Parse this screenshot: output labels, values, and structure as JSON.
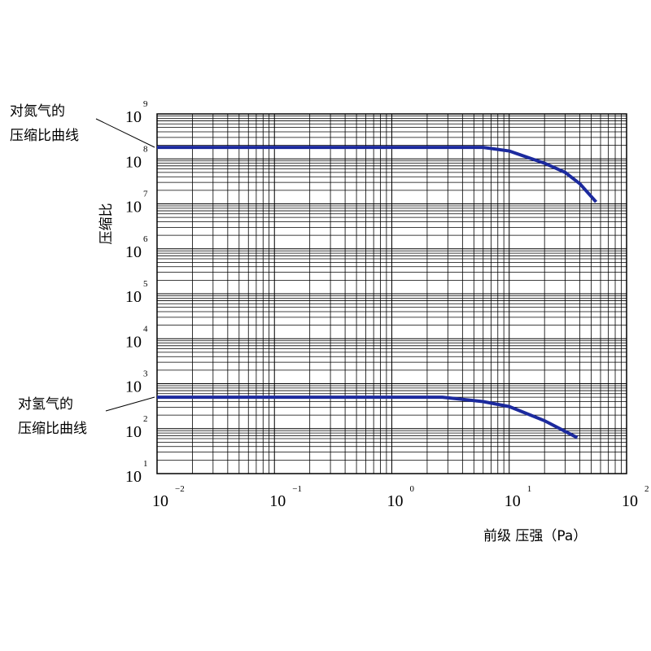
{
  "chart_data": {
    "type": "line",
    "xlabel": "前级 压强（Pa）",
    "ylabel": "压缩比",
    "xscale": "log",
    "yscale": "log",
    "grid": true,
    "minor_grid": true,
    "xlim": [
      0.01,
      100
    ],
    "ylim": [
      10,
      1000000000
    ],
    "xticks": [
      {
        "value": 0.01,
        "label": "10",
        "exponent": "−2"
      },
      {
        "value": 0.1,
        "label": "10",
        "exponent": "−1"
      },
      {
        "value": 1,
        "label": "10",
        "exponent": "0"
      },
      {
        "value": 10,
        "label": "10",
        "exponent": "1"
      },
      {
        "value": 100,
        "label": "10",
        "exponent": "2"
      }
    ],
    "yticks": [
      {
        "value": 10,
        "label": "10",
        "exponent": "1"
      },
      {
        "value": 100,
        "label": "10",
        "exponent": "2"
      },
      {
        "value": 1000,
        "label": "10",
        "exponent": "3"
      },
      {
        "value": 10000,
        "label": "10",
        "exponent": "4"
      },
      {
        "value": 100000,
        "label": "10",
        "exponent": "5"
      },
      {
        "value": 1000000,
        "label": "10",
        "exponent": "6"
      },
      {
        "value": 10000000,
        "label": "10",
        "exponent": "7"
      },
      {
        "value": 100000000,
        "label": "10",
        "exponent": "8"
      },
      {
        "value": 1000000000,
        "label": "10",
        "exponent": "9"
      }
    ],
    "series": [
      {
        "name": "氮气",
        "color": "#1c2a9e",
        "x": [
          0.01,
          6,
          10,
          20,
          30,
          40,
          55
        ],
        "values": [
          180000000,
          180000000,
          150000000,
          80000000,
          50000000,
          28000000,
          11000000
        ]
      },
      {
        "name": "氢气",
        "color": "#1c2a9e",
        "x": [
          0.01,
          2.7,
          6,
          10,
          20,
          38
        ],
        "values": [
          500,
          500,
          400,
          310,
          150,
          63
        ]
      }
    ],
    "annotations": [
      {
        "text": [
          "对氮气的",
          "压缩比曲线"
        ]
      },
      {
        "text": [
          "对氢气的",
          "压缩比曲线"
        ]
      }
    ]
  }
}
